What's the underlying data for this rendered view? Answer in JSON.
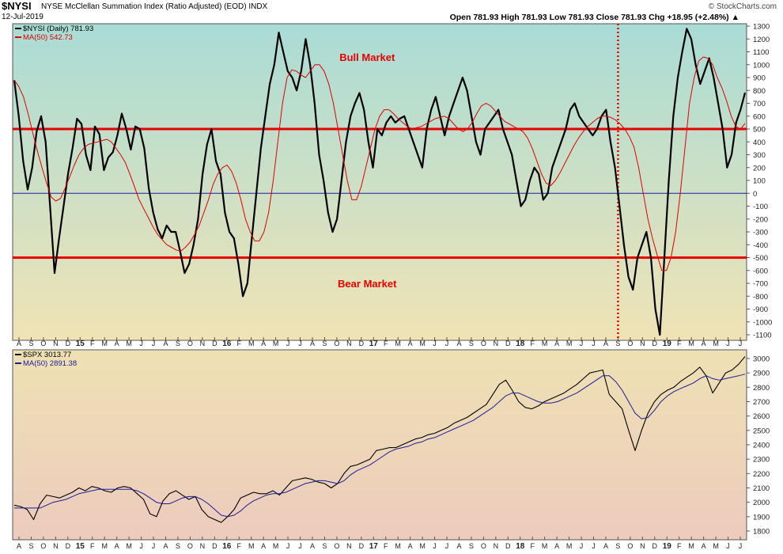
{
  "header": {
    "symbol": "$NYSI",
    "description": "NYSE McClellan Summation Index (Ratio Adjusted) (EOD)  INDX",
    "date": "12-Jul-2019",
    "brand": "© StockCharts.com",
    "ohlc": "Open 781.93   High 781.93   Low 781.93   Close 781.93   Chg +18.95 (+2.48%) ▲"
  },
  "colors": {
    "price_line": "#000000",
    "ma_top": "#dd0000",
    "ma_bottom": "#1c1c9c",
    "threshold": "#e80000",
    "annotation": "#e80000",
    "top_bg_top": "#a9dcd6",
    "top_bg_bottom": "#f0e3b5",
    "bottom_bg_top": "#eee1b3",
    "bottom_bg_bottom": "#edcbbd"
  },
  "chart_data": [
    {
      "type": "line",
      "panel": "top",
      "legend_position": "top-left",
      "grid": false,
      "ylim": [
        -1100,
        1300
      ],
      "yticks": [
        1300,
        1200,
        1100,
        1000,
        900,
        800,
        700,
        600,
        500,
        400,
        300,
        200,
        100,
        0,
        -100,
        -200,
        -300,
        -400,
        -500,
        -600,
        -700,
        -800,
        -900,
        -1000,
        -1100
      ],
      "xtick_labels": [
        "A",
        "S",
        "O",
        "N",
        "D",
        "15",
        "F",
        "M",
        "A",
        "M",
        "J",
        "J",
        "A",
        "S",
        "O",
        "N",
        "D",
        "16",
        "F",
        "M",
        "A",
        "M",
        "J",
        "J",
        "A",
        "S",
        "O",
        "N",
        "D",
        "17",
        "F",
        "M",
        "A",
        "M",
        "J",
        "J",
        "A",
        "S",
        "O",
        "N",
        "D",
        "18",
        "F",
        "M",
        "A",
        "M",
        "J",
        "J",
        "A",
        "S",
        "O",
        "N",
        "D",
        "19",
        "F",
        "M",
        "A",
        "M",
        "J",
        "J"
      ],
      "series": [
        {
          "name": "$NYSI (Daily) 781.93",
          "legend_color": "#000000",
          "values": [
            880,
            600,
            250,
            30,
            200,
            480,
            600,
            400,
            -100,
            -620,
            -350,
            -100,
            150,
            350,
            580,
            540,
            300,
            180,
            520,
            460,
            180,
            280,
            320,
            450,
            620,
            500,
            340,
            520,
            500,
            350,
            40,
            -150,
            -280,
            -350,
            -250,
            -300,
            -300,
            -450,
            -620,
            -550,
            -400,
            -200,
            150,
            380,
            500,
            250,
            150,
            -150,
            -300,
            -350,
            -550,
            -800,
            -700,
            -350,
            0,
            350,
            600,
            850,
            1000,
            1250,
            1100,
            950,
            900,
            800,
            950,
            1200,
            1000,
            700,
            300,
            100,
            -150,
            -300,
            -200,
            100,
            400,
            600,
            700,
            780,
            650,
            400,
            200,
            500,
            450,
            550,
            600,
            550,
            580,
            600,
            500,
            400,
            300,
            200,
            500,
            650,
            750,
            600,
            450,
            600,
            700,
            800,
            900,
            800,
            600,
            400,
            300,
            500,
            550,
            600,
            650,
            500,
            400,
            300,
            100,
            -100,
            -50,
            100,
            200,
            150,
            -50,
            0,
            200,
            300,
            400,
            500,
            650,
            700,
            600,
            550,
            500,
            450,
            500,
            600,
            650,
            400,
            200,
            -100,
            -400,
            -650,
            -750,
            -500,
            -400,
            -300,
            -500,
            -900,
            -1100,
            -500,
            100,
            600,
            900,
            1100,
            1280,
            1200,
            1000,
            850,
            950,
            1050,
            900,
            700,
            500,
            200,
            300,
            550,
            650,
            781.93
          ]
        },
        {
          "name": "MA(50) 542.73",
          "legend_color": "#dd0000",
          "values": [
            880,
            830,
            750,
            620,
            470,
            330,
            200,
            80,
            -30,
            -60,
            -40,
            40,
            130,
            220,
            300,
            350,
            380,
            390,
            400,
            410,
            420,
            400,
            350,
            300,
            240,
            150,
            50,
            -50,
            -120,
            -190,
            -260,
            -320,
            -360,
            -400,
            -420,
            -440,
            -450,
            -420,
            -380,
            -320,
            -250,
            -150,
            -50,
            70,
            150,
            200,
            220,
            170,
            80,
            -50,
            -200,
            -300,
            -370,
            -370,
            -300,
            -150,
            100,
            400,
            700,
            900,
            960,
            950,
            920,
            900,
            950,
            1000,
            1000,
            950,
            850,
            700,
            500,
            300,
            100,
            -50,
            -50,
            50,
            200,
            350,
            500,
            600,
            650,
            650,
            620,
            580,
            550,
            520,
            500,
            510,
            520,
            540,
            560,
            580,
            590,
            600,
            580,
            540,
            500,
            480,
            500,
            550,
            620,
            680,
            700,
            680,
            640,
            600,
            560,
            540,
            520,
            500,
            480,
            430,
            350,
            250,
            150,
            80,
            60,
            100,
            160,
            230,
            300,
            370,
            430,
            480,
            520,
            550,
            580,
            600,
            600,
            590,
            570,
            540,
            500,
            440,
            360,
            200,
            0,
            -200,
            -350,
            -480,
            -600,
            -600,
            -500,
            -300,
            0,
            350,
            700,
            900,
            1030,
            1060,
            1050,
            1000,
            900,
            820,
            720,
            600,
            520,
            500,
            542.73
          ]
        }
      ],
      "lines": [
        {
          "type": "horizontal",
          "y": 500,
          "color": "#e80000"
        },
        {
          "type": "horizontal",
          "y": -500,
          "color": "#e80000"
        },
        {
          "type": "horizontal",
          "y": 0,
          "color": "#1c1c9c"
        },
        {
          "type": "vertical-dotted",
          "x_position_month_index": 49,
          "color": "#e80000"
        }
      ],
      "annotations": [
        {
          "text": "Bull Market",
          "x_month_index": 29,
          "y": 1060
        },
        {
          "text": "Bear Market",
          "x_month_index": 29,
          "y": -700
        }
      ]
    },
    {
      "type": "line",
      "panel": "bottom",
      "legend_position": "top-left",
      "grid": false,
      "ylim": [
        1800,
        3000
      ],
      "yticks": [
        3000,
        2900,
        2800,
        2700,
        2600,
        2500,
        2400,
        2300,
        2200,
        2100,
        2000,
        1900,
        1800
      ],
      "xtick_labels": [
        "A",
        "S",
        "O",
        "N",
        "D",
        "15",
        "F",
        "M",
        "A",
        "M",
        "J",
        "J",
        "A",
        "S",
        "O",
        "N",
        "D",
        "16",
        "F",
        "M",
        "A",
        "M",
        "J",
        "J",
        "A",
        "S",
        "O",
        "N",
        "D",
        "17",
        "F",
        "M",
        "A",
        "M",
        "J",
        "J",
        "A",
        "S",
        "O",
        "N",
        "D",
        "18",
        "F",
        "M",
        "A",
        "M",
        "J",
        "J",
        "A",
        "S",
        "O",
        "N",
        "D",
        "19",
        "F",
        "M",
        "A",
        "M",
        "J",
        "J"
      ],
      "series": [
        {
          "name": "$SPX 3013.77",
          "legend_color": "#000000",
          "values": [
            1980,
            1970,
            1950,
            1880,
            1990,
            2050,
            2040,
            2030,
            2050,
            2070,
            2100,
            2080,
            2110,
            2100,
            2080,
            2070,
            2100,
            2110,
            2100,
            2060,
            2020,
            1920,
            1900,
            2010,
            2060,
            2080,
            2050,
            2020,
            2040,
            1950,
            1900,
            1880,
            1860,
            1900,
            1950,
            2030,
            2050,
            2070,
            2060,
            2060,
            2080,
            2050,
            2100,
            2150,
            2160,
            2170,
            2160,
            2140,
            2130,
            2100,
            2130,
            2200,
            2250,
            2260,
            2280,
            2300,
            2360,
            2370,
            2380,
            2380,
            2400,
            2420,
            2440,
            2450,
            2470,
            2480,
            2500,
            2520,
            2550,
            2570,
            2590,
            2620,
            2650,
            2680,
            2750,
            2820,
            2850,
            2780,
            2700,
            2660,
            2650,
            2670,
            2700,
            2720,
            2740,
            2760,
            2790,
            2820,
            2860,
            2900,
            2910,
            2920,
            2750,
            2700,
            2650,
            2500,
            2360,
            2500,
            2620,
            2700,
            2750,
            2780,
            2800,
            2840,
            2870,
            2900,
            2940,
            2880,
            2760,
            2830,
            2900,
            2920,
            2960,
            3013.77
          ]
        },
        {
          "name": "MA(50) 2891.38",
          "legend_color": "#1c1c9c",
          "values": [
            1960,
            1960,
            1960,
            1960,
            1960,
            1980,
            2000,
            2010,
            2020,
            2040,
            2060,
            2070,
            2080,
            2090,
            2090,
            2090,
            2090,
            2090,
            2090,
            2080,
            2060,
            2030,
            2000,
            1990,
            1990,
            2010,
            2030,
            2040,
            2040,
            2020,
            1990,
            1950,
            1910,
            1900,
            1910,
            1940,
            1980,
            2010,
            2030,
            2050,
            2060,
            2060,
            2070,
            2090,
            2110,
            2130,
            2140,
            2150,
            2150,
            2140,
            2130,
            2150,
            2190,
            2220,
            2240,
            2260,
            2290,
            2320,
            2350,
            2370,
            2380,
            2390,
            2410,
            2420,
            2440,
            2450,
            2470,
            2490,
            2510,
            2530,
            2550,
            2570,
            2600,
            2630,
            2660,
            2700,
            2740,
            2760,
            2760,
            2740,
            2720,
            2700,
            2690,
            2690,
            2700,
            2720,
            2740,
            2760,
            2790,
            2820,
            2850,
            2880,
            2880,
            2840,
            2780,
            2700,
            2620,
            2580,
            2590,
            2640,
            2700,
            2740,
            2770,
            2790,
            2810,
            2830,
            2860,
            2880,
            2860,
            2850,
            2860,
            2870,
            2880,
            2891.38
          ]
        }
      ]
    }
  ]
}
